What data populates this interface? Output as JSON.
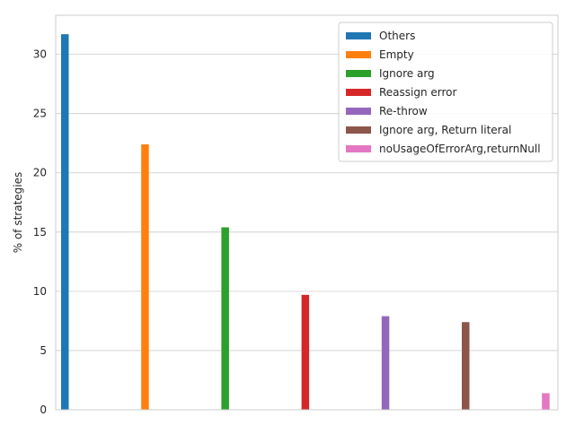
{
  "chart_data": {
    "type": "bar",
    "title": "",
    "xlabel": "",
    "ylabel": "% of strategies",
    "ylim": [
      0,
      33.3
    ],
    "yticks": [
      0,
      5,
      10,
      15,
      20,
      25,
      30
    ],
    "grid": true,
    "legend_position": "top-right",
    "series": [
      {
        "name": "Others",
        "value": 31.7,
        "color": "#1f77b4"
      },
      {
        "name": "Empty",
        "value": 22.4,
        "color": "#ff7f0e"
      },
      {
        "name": "Ignore arg",
        "value": 15.4,
        "color": "#2ca02c"
      },
      {
        "name": "Reassign error",
        "value": 9.7,
        "color": "#d62728"
      },
      {
        "name": "Re-throw",
        "value": 7.9,
        "color": "#9467bd"
      },
      {
        "name": "Ignore arg, Return literal",
        "value": 7.4,
        "color": "#8c564b"
      },
      {
        "name": "noUsageOfErrorArg,returnNull",
        "value": 1.4,
        "color": "#e377c2"
      }
    ]
  }
}
